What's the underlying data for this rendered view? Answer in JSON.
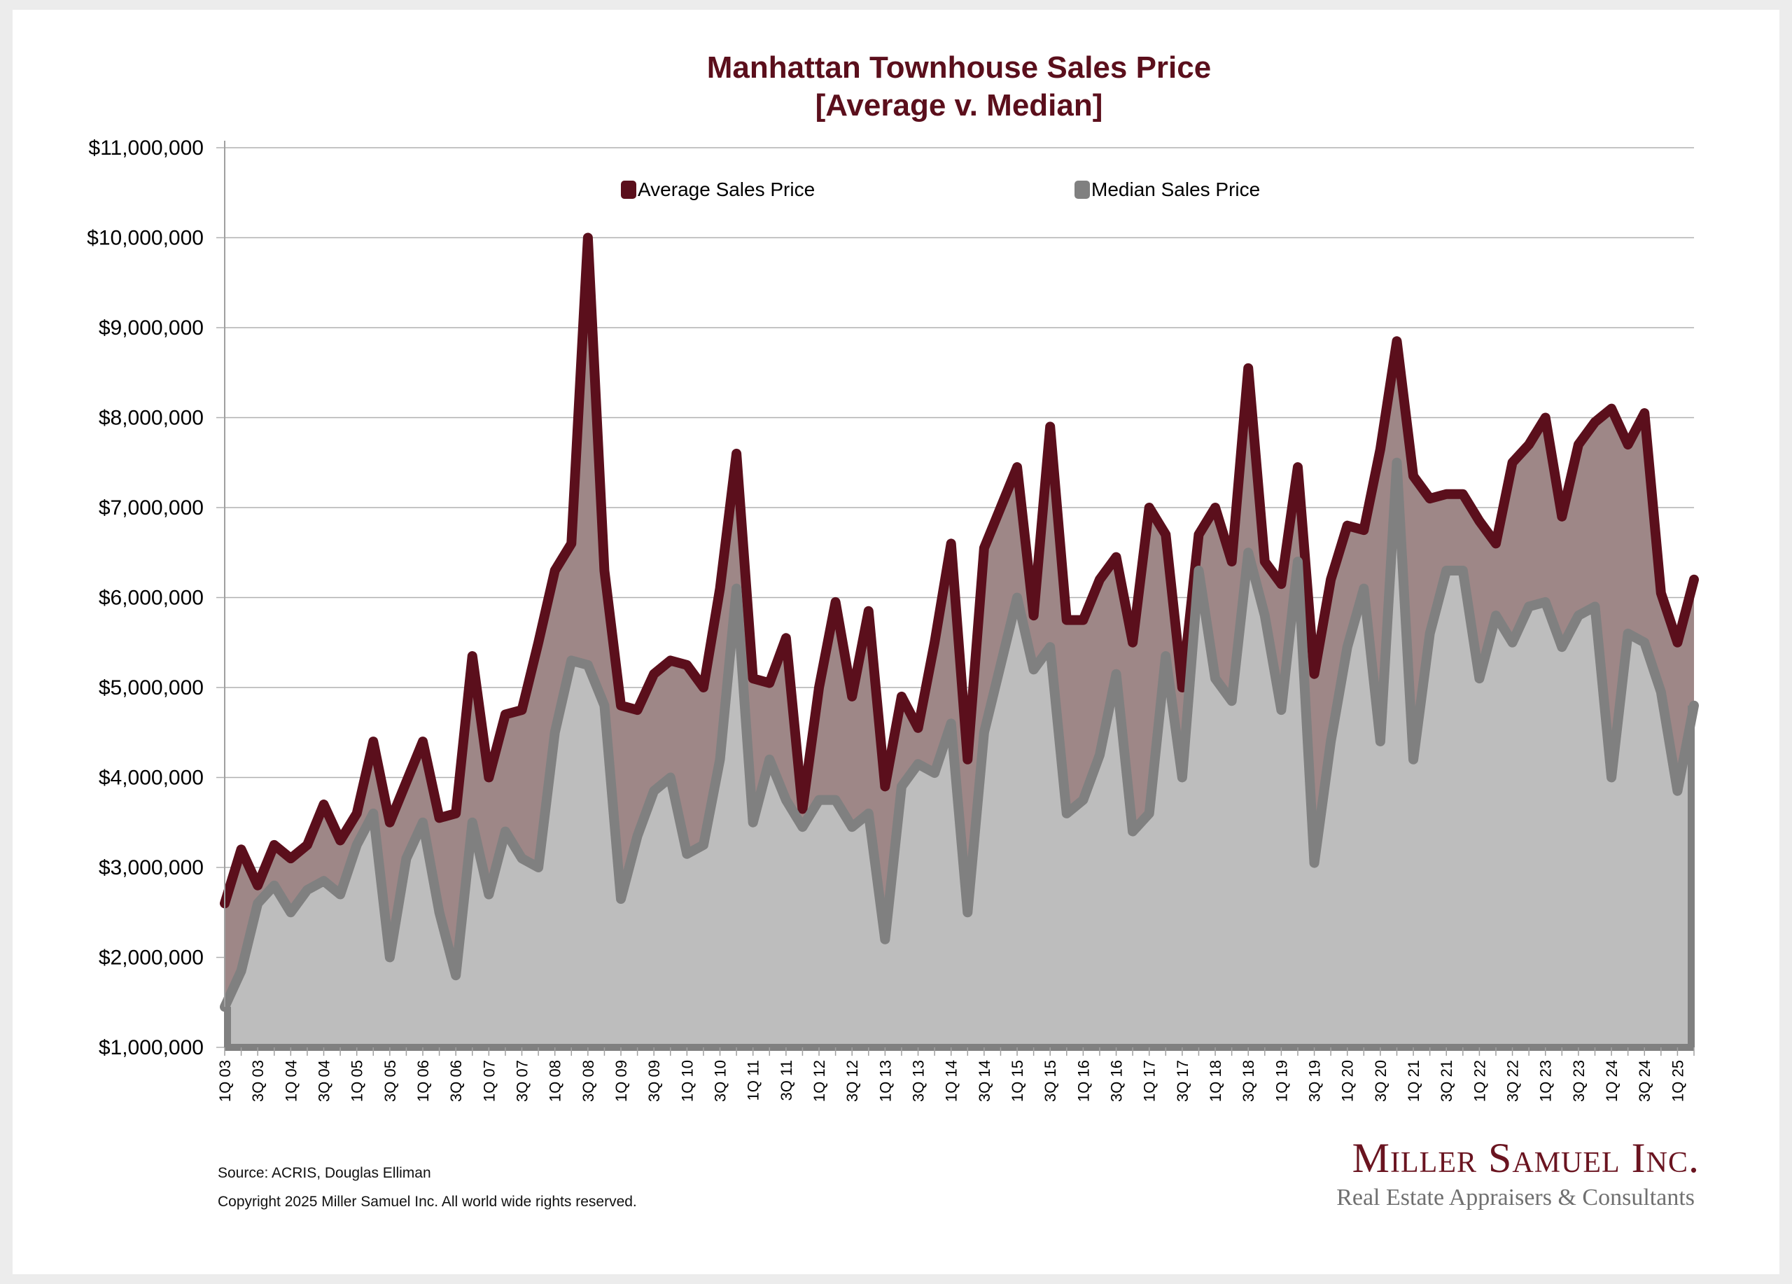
{
  "chart_data": {
    "type": "area",
    "title": "Manhattan Townhouse Sales Price",
    "subtitle": "[Average v. Median]",
    "xlabel": "",
    "ylabel": "",
    "ylim": [
      1000000,
      11000000
    ],
    "y_ticks": [
      "$1,000,000",
      "$2,000,000",
      "$3,000,000",
      "$4,000,000",
      "$5,000,000",
      "$6,000,000",
      "$7,000,000",
      "$8,000,000",
      "$9,000,000",
      "$10,000,000",
      "$11,000,000"
    ],
    "grid": true,
    "legend_position": "top-center",
    "x_tick_labels": [
      "1Q 03",
      "3Q 03",
      "1Q 04",
      "3Q 04",
      "1Q 05",
      "3Q 05",
      "1Q 06",
      "3Q 06",
      "1Q 07",
      "3Q 07",
      "1Q 08",
      "3Q 08",
      "1Q 09",
      "3Q 09",
      "1Q 10",
      "3Q 10",
      "1Q 11",
      "3Q 11",
      "1Q 12",
      "3Q 12",
      "1Q 13",
      "3Q 13",
      "1Q 14",
      "3Q 14",
      "1Q 15",
      "3Q 15",
      "1Q 16",
      "3Q 16",
      "1Q 17",
      "3Q 17",
      "1Q 18",
      "3Q 18",
      "1Q 19",
      "3Q 19",
      "1Q 20",
      "3Q 20",
      "1Q 21",
      "3Q 21",
      "1Q 22",
      "3Q 22",
      "1Q 23",
      "3Q 23",
      "1Q 24",
      "3Q 24",
      "1Q 25"
    ],
    "x": [
      "1Q 03",
      "2Q 03",
      "3Q 03",
      "4Q 03",
      "1Q 04",
      "2Q 04",
      "3Q 04",
      "4Q 04",
      "1Q 05",
      "2Q 05",
      "3Q 05",
      "4Q 05",
      "1Q 06",
      "2Q 06",
      "3Q 06",
      "4Q 06",
      "1Q 07",
      "2Q 07",
      "3Q 07",
      "4Q 07",
      "1Q 08",
      "2Q 08",
      "3Q 08",
      "4Q 08",
      "1Q 09",
      "2Q 09",
      "3Q 09",
      "4Q 09",
      "1Q 10",
      "2Q 10",
      "3Q 10",
      "4Q 10",
      "1Q 11",
      "2Q 11",
      "3Q 11",
      "4Q 11",
      "1Q 12",
      "2Q 12",
      "3Q 12",
      "4Q 12",
      "1Q 13",
      "2Q 13",
      "3Q 13",
      "4Q 13",
      "1Q 14",
      "2Q 14",
      "3Q 14",
      "4Q 14",
      "1Q 15",
      "2Q 15",
      "3Q 15",
      "4Q 15",
      "1Q 16",
      "2Q 16",
      "3Q 16",
      "4Q 16",
      "1Q 17",
      "2Q 17",
      "3Q 17",
      "4Q 17",
      "1Q 18",
      "2Q 18",
      "3Q 18",
      "4Q 18",
      "1Q 19",
      "2Q 19",
      "3Q 19",
      "4Q 19",
      "1Q 20",
      "2Q 20",
      "3Q 20",
      "4Q 20",
      "1Q 21",
      "2Q 21",
      "3Q 21",
      "4Q 21",
      "1Q 22",
      "2Q 22",
      "3Q 22",
      "4Q 22",
      "1Q 23",
      "2Q 23",
      "3Q 23",
      "4Q 23",
      "1Q 24",
      "2Q 24",
      "3Q 24",
      "4Q 24",
      "1Q 25",
      "2Q 25"
    ],
    "series": [
      {
        "name": "Average Sales Price",
        "color": "#5b0f1c",
        "fill": "#9e8787",
        "values": [
          2600000,
          3200000,
          2800000,
          3250000,
          3100000,
          3250000,
          3700000,
          3300000,
          3600000,
          4400000,
          3500000,
          3950000,
          4400000,
          3550000,
          3600000,
          5350000,
          4000000,
          4700000,
          4750000,
          5500000,
          6300000,
          6600000,
          10000000,
          6300000,
          4800000,
          4750000,
          5150000,
          5300000,
          5250000,
          5000000,
          6100000,
          7600000,
          5100000,
          5050000,
          5550000,
          3650000,
          5000000,
          5950000,
          4900000,
          5850000,
          3900000,
          4900000,
          4550000,
          5500000,
          6600000,
          4200000,
          6550000,
          7000000,
          7450000,
          5800000,
          7900000,
          5750000,
          5750000,
          6200000,
          6450000,
          5500000,
          7000000,
          6700000,
          5000000,
          6700000,
          7000000,
          6400000,
          8550000,
          6400000,
          6150000,
          7450000,
          5150000,
          6200000,
          6800000,
          6750000,
          7650000,
          8850000,
          7350000,
          7100000,
          7150000,
          7150000,
          6850000,
          6600000,
          7500000,
          7700000,
          8000000,
          6900000,
          7700000,
          7950000,
          8100000,
          7700000,
          8050000,
          6050000,
          5500000,
          6200000
        ]
      },
      {
        "name": "Median Sales Price",
        "color": "#808080",
        "fill": "#bdbdbd",
        "values": [
          1450000,
          1850000,
          2600000,
          2800000,
          2500000,
          2750000,
          2850000,
          2700000,
          3250000,
          3600000,
          2000000,
          3100000,
          3500000,
          2500000,
          1800000,
          3500000,
          2700000,
          3400000,
          3100000,
          3000000,
          4500000,
          5300000,
          5250000,
          4800000,
          2650000,
          3350000,
          3850000,
          4000000,
          3150000,
          3250000,
          4200000,
          6100000,
          3500000,
          4200000,
          3750000,
          3450000,
          3750000,
          3750000,
          3450000,
          3600000,
          2200000,
          3900000,
          4150000,
          4050000,
          4600000,
          2500000,
          4500000,
          5250000,
          6000000,
          5200000,
          5450000,
          3600000,
          3750000,
          4250000,
          5150000,
          3400000,
          3600000,
          5350000,
          4000000,
          6300000,
          5100000,
          4850000,
          6500000,
          5800000,
          4750000,
          6400000,
          3050000,
          4400000,
          5450000,
          6100000,
          4400000,
          7500000,
          4200000,
          5600000,
          6300000,
          6300000,
          5100000,
          5800000,
          5500000,
          5900000,
          5950000,
          5450000,
          5800000,
          5900000,
          4000000,
          5600000,
          5500000,
          4950000,
          3850000,
          4800000
        ]
      }
    ]
  },
  "footer": {
    "source": "Source: ACRIS, Douglas Elliman",
    "copyright": "Copyright 2025 Miller Samuel Inc.  All world wide rights reserved."
  },
  "logo": {
    "name": "Miller Samuel Inc.",
    "tagline": "Real Estate Appraisers & Consultants"
  }
}
